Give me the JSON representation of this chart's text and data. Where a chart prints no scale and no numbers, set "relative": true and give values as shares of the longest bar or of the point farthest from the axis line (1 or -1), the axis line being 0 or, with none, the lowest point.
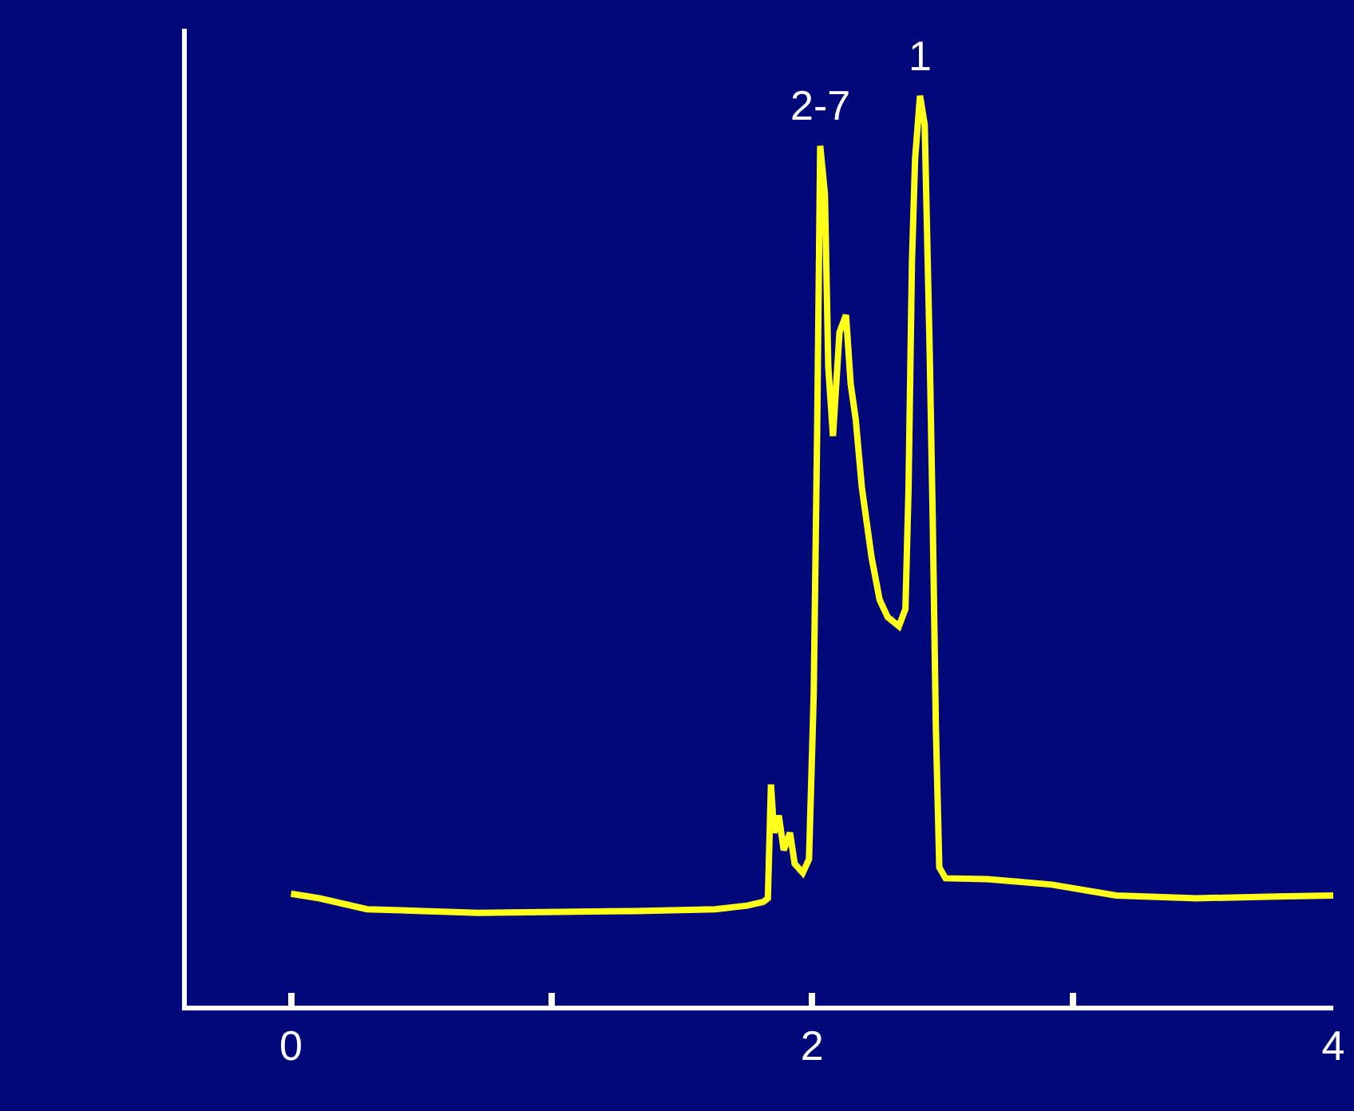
{
  "chart_data": {
    "type": "line",
    "relative": true,
    "color": "#ffff1a",
    "x": [
      0,
      0.109,
      0.292,
      0.717,
      1.325,
      1.629,
      1.751,
      1.812,
      1.83,
      1.842,
      1.854,
      1.872,
      1.891,
      1.915,
      1.933,
      1.964,
      1.988,
      2.006,
      2.019,
      2.031,
      2.049,
      2.062,
      2.08,
      2.105,
      2.13,
      2.148,
      2.167,
      2.191,
      2.228,
      2.259,
      2.29,
      2.333,
      2.358,
      2.37,
      2.383,
      2.395,
      2.414,
      2.432,
      2.451,
      2.463,
      2.475,
      2.488,
      2.512,
      2.673,
      2.92,
      3.167,
      3.475,
      3.784,
      4.0
    ],
    "values": [
      0.123,
      0.118,
      0.106,
      0.102,
      0.104,
      0.106,
      0.11,
      0.114,
      0.118,
      0.243,
      0.19,
      0.209,
      0.171,
      0.19,
      0.156,
      0.146,
      0.161,
      0.342,
      0.626,
      0.945,
      0.892,
      0.702,
      0.626,
      0.74,
      0.759,
      0.683,
      0.645,
      0.569,
      0.493,
      0.446,
      0.427,
      0.417,
      0.436,
      0.569,
      0.816,
      0.93,
      1.0,
      0.968,
      0.721,
      0.531,
      0.304,
      0.152,
      0.14,
      0.139,
      0.133,
      0.121,
      0.118,
      0.12,
      0.121
    ],
    "xlim": [
      -0.4,
      4
    ],
    "xticks": [
      0,
      {
        "value": 1,
        "label": null
      },
      2,
      {
        "value": 3,
        "label": null
      },
      4
    ],
    "annotations": [
      {
        "text": "2-7",
        "x": 2.031,
        "y": 0.945
      },
      {
        "text": "1",
        "x": 2.414,
        "y": 1.0
      }
    ]
  }
}
